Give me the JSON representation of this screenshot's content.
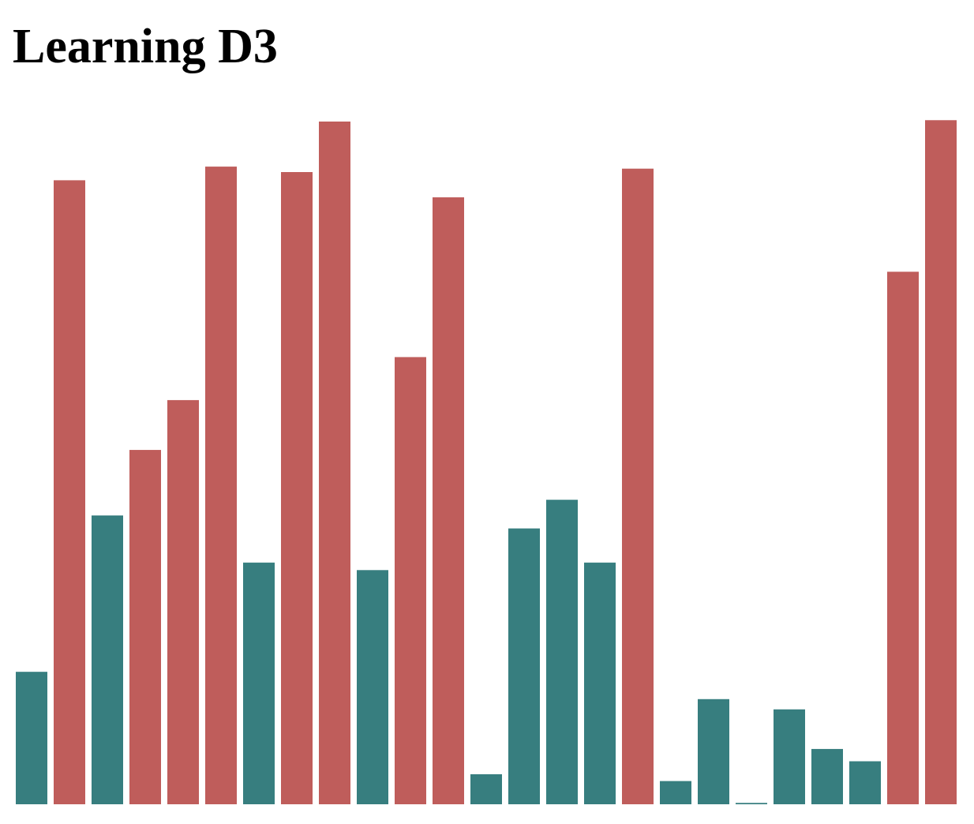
{
  "page": {
    "title": "Learning D3"
  },
  "colors": {
    "low": "#377e7f",
    "high": "#bf5d5b",
    "background": "#ffffff"
  },
  "chart_data": {
    "type": "bar",
    "title": "",
    "xlabel": "",
    "ylabel": "",
    "ylim": [
      0,
      1
    ],
    "values": [
      0.194,
      0.914,
      0.423,
      0.519,
      0.592,
      0.934,
      0.354,
      0.926,
      1.0,
      0.343,
      0.655,
      0.889,
      0.044,
      0.404,
      0.446,
      0.354,
      0.931,
      0.034,
      0.154,
      0.002,
      0.139,
      0.081,
      0.063,
      0.78,
      1.002
    ],
    "high_threshold": 0.5,
    "grid": false,
    "legend": "none"
  }
}
